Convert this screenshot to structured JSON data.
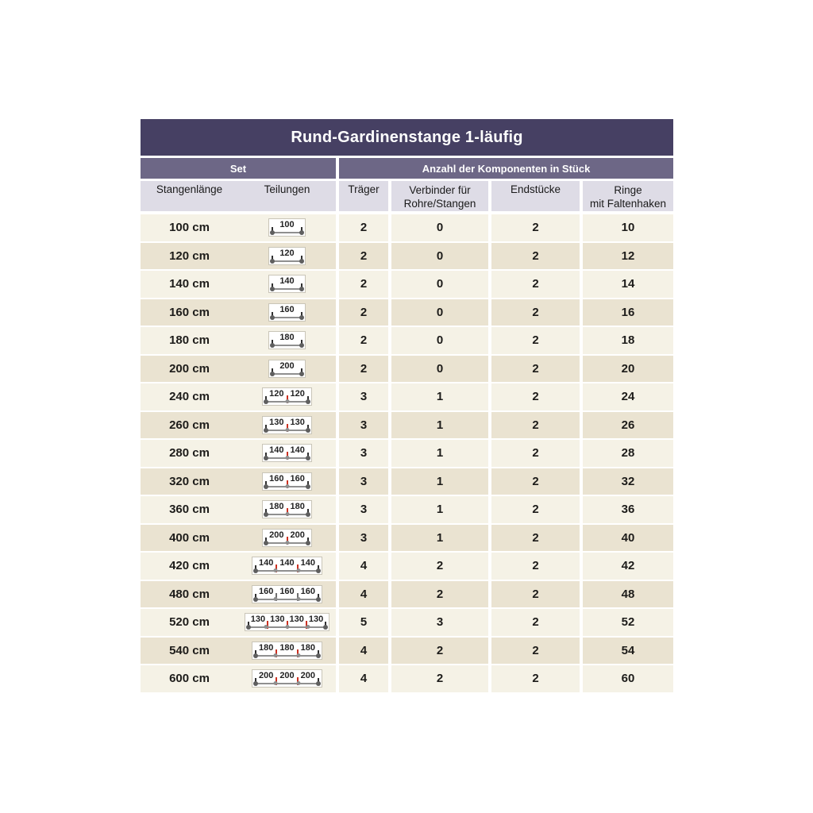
{
  "chart_data": {
    "type": "table",
    "title": "Rund-Gardinenstange 1-läufig",
    "group_headers": {
      "set": "Set",
      "components": "Anzahl der Komponenten in Stück"
    },
    "column_labels": {
      "stangenlaenge": "Stangenlänge",
      "teilungen": "Teilungen",
      "traeger": "Träger",
      "verbinder_line1": "Verbinder für",
      "verbinder_line2": "Rohre/Stangen",
      "endstuecke": "Endstücke",
      "ringe_line1": "Ringe",
      "ringe_line2": "mit Faltenhaken"
    },
    "rows": [
      {
        "stangenlaenge": "100 cm",
        "teilungen_segments": [
          100
        ],
        "connector": "red",
        "traeger": "2",
        "verbinder": "0",
        "endstuecke": "2",
        "ringe": "10"
      },
      {
        "stangenlaenge": "120 cm",
        "teilungen_segments": [
          120
        ],
        "connector": "red",
        "traeger": "2",
        "verbinder": "0",
        "endstuecke": "2",
        "ringe": "12"
      },
      {
        "stangenlaenge": "140 cm",
        "teilungen_segments": [
          140
        ],
        "connector": "red",
        "traeger": "2",
        "verbinder": "0",
        "endstuecke": "2",
        "ringe": "14"
      },
      {
        "stangenlaenge": "160 cm",
        "teilungen_segments": [
          160
        ],
        "connector": "red",
        "traeger": "2",
        "verbinder": "0",
        "endstuecke": "2",
        "ringe": "16"
      },
      {
        "stangenlaenge": "180 cm",
        "teilungen_segments": [
          180
        ],
        "connector": "red",
        "traeger": "2",
        "verbinder": "0",
        "endstuecke": "2",
        "ringe": "18"
      },
      {
        "stangenlaenge": "200 cm",
        "teilungen_segments": [
          200
        ],
        "connector": "red",
        "traeger": "2",
        "verbinder": "0",
        "endstuecke": "2",
        "ringe": "20"
      },
      {
        "stangenlaenge": "240 cm",
        "teilungen_segments": [
          120,
          120
        ],
        "connector": "red",
        "traeger": "3",
        "verbinder": "1",
        "endstuecke": "2",
        "ringe": "24"
      },
      {
        "stangenlaenge": "260 cm",
        "teilungen_segments": [
          130,
          130
        ],
        "connector": "red",
        "traeger": "3",
        "verbinder": "1",
        "endstuecke": "2",
        "ringe": "26"
      },
      {
        "stangenlaenge": "280 cm",
        "teilungen_segments": [
          140,
          140
        ],
        "connector": "red",
        "traeger": "3",
        "verbinder": "1",
        "endstuecke": "2",
        "ringe": "28"
      },
      {
        "stangenlaenge": "320 cm",
        "teilungen_segments": [
          160,
          160
        ],
        "connector": "red",
        "traeger": "3",
        "verbinder": "1",
        "endstuecke": "2",
        "ringe": "32"
      },
      {
        "stangenlaenge": "360 cm",
        "teilungen_segments": [
          180,
          180
        ],
        "connector": "red",
        "traeger": "3",
        "verbinder": "1",
        "endstuecke": "2",
        "ringe": "36"
      },
      {
        "stangenlaenge": "400 cm",
        "teilungen_segments": [
          200,
          200
        ],
        "connector": "red",
        "traeger": "3",
        "verbinder": "1",
        "endstuecke": "2",
        "ringe": "40"
      },
      {
        "stangenlaenge": "420 cm",
        "teilungen_segments": [
          140,
          140,
          140
        ],
        "connector": "red",
        "traeger": "4",
        "verbinder": "2",
        "endstuecke": "2",
        "ringe": "42"
      },
      {
        "stangenlaenge": "480 cm",
        "teilungen_segments": [
          160,
          160,
          160
        ],
        "connector": "gray",
        "traeger": "4",
        "verbinder": "2",
        "endstuecke": "2",
        "ringe": "48"
      },
      {
        "stangenlaenge": "520 cm",
        "teilungen_segments": [
          130,
          130,
          130,
          130
        ],
        "connector": "red",
        "traeger": "5",
        "verbinder": "3",
        "endstuecke": "2",
        "ringe": "52"
      },
      {
        "stangenlaenge": "540 cm",
        "teilungen_segments": [
          180,
          180,
          180
        ],
        "connector": "red",
        "traeger": "4",
        "verbinder": "2",
        "endstuecke": "2",
        "ringe": "54"
      },
      {
        "stangenlaenge": "600 cm",
        "teilungen_segments": [
          200,
          200,
          200
        ],
        "connector": "red",
        "traeger": "4",
        "verbinder": "2",
        "endstuecke": "2",
        "ringe": "60"
      }
    ]
  },
  "colors": {
    "title_bg": "#464063",
    "group_header_bg": "#6d6786",
    "column_header_bg": "#dedce6",
    "row_light": "#f5f2e6",
    "row_dark": "#eae3d1",
    "text_ink": "#1d1c1a",
    "connector_red": "#cc3122",
    "connector_gray": "#6f6f6f",
    "rod_gray": "#8f8f8f",
    "rod_end_dot": "#5f5f5f"
  }
}
